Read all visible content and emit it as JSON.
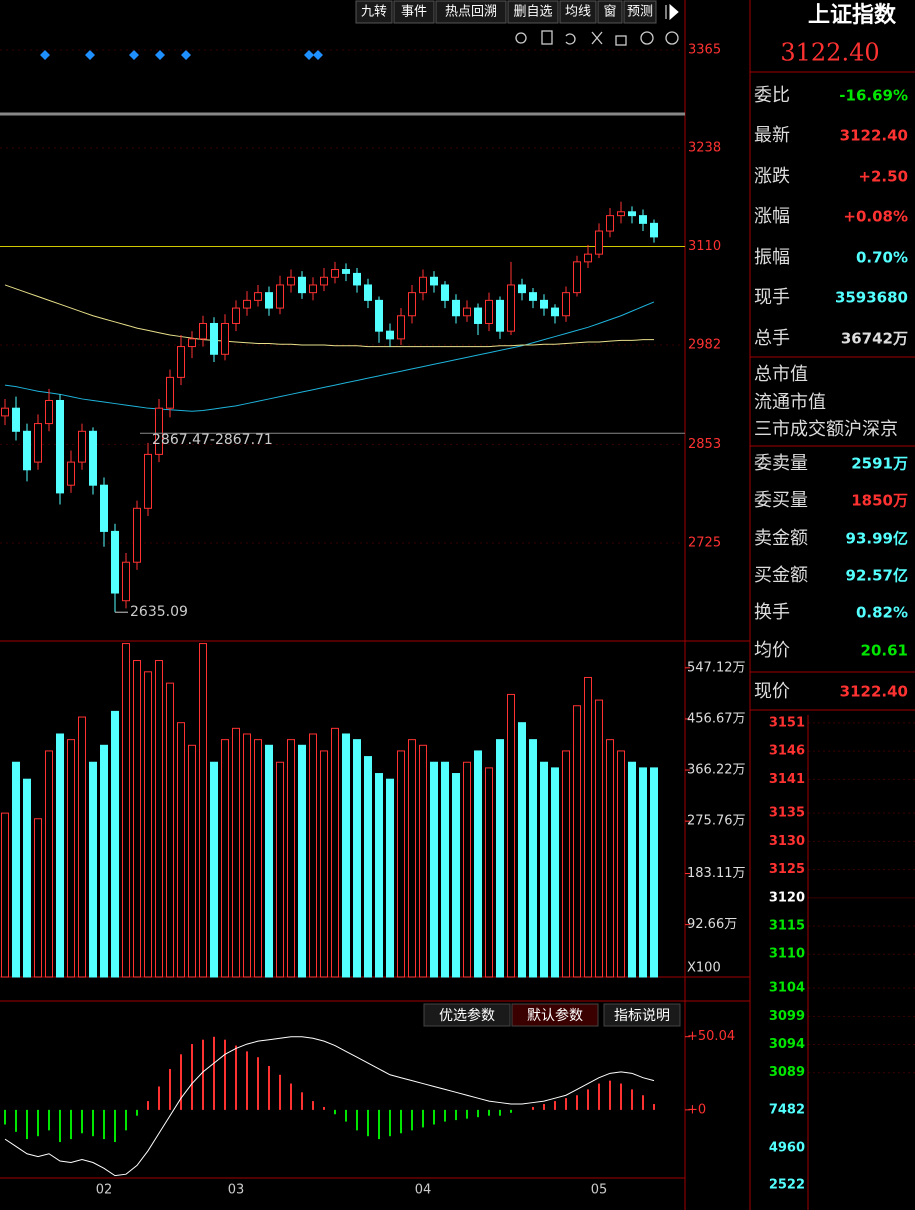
{
  "toolbar": [
    "九转",
    "事件",
    "热点回溯",
    "删自选",
    "均线",
    "窗",
    "预测"
  ],
  "quote": {
    "name": "上证指数",
    "price": "3122.40",
    "rows": [
      {
        "label": "委比",
        "value": "-16.69%",
        "color": "#00e600"
      },
      {
        "label": "最新",
        "value": "3122.40",
        "color": "#ff3232"
      },
      {
        "label": "涨跌",
        "value": "+2.50",
        "color": "#ff3232"
      },
      {
        "label": "涨幅",
        "value": "+0.08%",
        "color": "#ff3232"
      },
      {
        "label": "振幅",
        "value": "0.70%",
        "color": "#54ffff"
      },
      {
        "label": "现手",
        "value": "3593680",
        "color": "#54ffff"
      },
      {
        "label": "总手",
        "value": "36742万",
        "color": "#dddddd"
      }
    ],
    "info_rows": [
      "总市值",
      "流通市值",
      "三市成交额沪深京"
    ],
    "rows2": [
      {
        "label": "委卖量",
        "value": "2591万",
        "color": "#54ffff"
      },
      {
        "label": "委买量",
        "value": "1850万",
        "color": "#ff3232"
      },
      {
        "label": "卖金额",
        "value": "93.99亿",
        "color": "#54ffff"
      },
      {
        "label": "买金额",
        "value": "92.57亿",
        "color": "#54ffff"
      },
      {
        "label": "换手",
        "value": "0.82%",
        "color": "#54ffff"
      },
      {
        "label": "均价",
        "value": "20.61",
        "color": "#00e600"
      },
      {
        "label": "现价",
        "value": "3122.40",
        "color": "#ff3232"
      }
    ]
  },
  "buttons": [
    "优选参数",
    "默认参数",
    "指标说明"
  ],
  "chart_data": [
    {
      "type": "candlestick",
      "categories": [
        null,
        null,
        null,
        null,
        null,
        null,
        null,
        null,
        null,
        "02",
        null,
        null,
        null,
        null,
        null,
        null,
        null,
        null,
        null,
        null,
        null,
        "03",
        null,
        null,
        null,
        null,
        null,
        null,
        null,
        null,
        null,
        null,
        null,
        null,
        null,
        null,
        null,
        null,
        "04",
        null,
        null,
        null,
        null,
        null,
        null,
        null,
        null,
        null,
        null,
        null,
        null,
        null,
        null,
        null,
        "05",
        null,
        null,
        null,
        null,
        null
      ],
      "open": [
        2890,
        2900,
        2870,
        2830,
        2880,
        2910,
        2800,
        2830,
        2870,
        2800,
        2740,
        2650,
        2700,
        2770,
        2840,
        2900,
        2940,
        2980,
        2990,
        3010,
        2970,
        3010,
        3030,
        3040,
        3050,
        3030,
        3060,
        3070,
        3050,
        3060,
        3070,
        3080,
        3075,
        3060,
        3040,
        3000,
        2990,
        3020,
        3050,
        3070,
        3060,
        3040,
        3020,
        3030,
        3010,
        3040,
        3000,
        3060,
        3050,
        3040,
        3030,
        3020,
        3050,
        3090,
        3100,
        3130,
        3150,
        3155,
        3150,
        3140
      ],
      "high": [
        2912,
        2915,
        2880,
        2892,
        2925,
        2918,
        2845,
        2880,
        2875,
        2810,
        2750,
        2712,
        2780,
        2855,
        2912,
        2950,
        2995,
        3000,
        3020,
        3018,
        3022,
        3040,
        3052,
        3060,
        3058,
        3072,
        3080,
        3078,
        3070,
        3082,
        3090,
        3088,
        3082,
        3068,
        3045,
        3010,
        3030,
        3060,
        3080,
        3078,
        3065,
        3048,
        3040,
        3036,
        3050,
        3045,
        3090,
        3068,
        3056,
        3048,
        3035,
        3058,
        3098,
        3112,
        3140,
        3160,
        3168,
        3162,
        3158,
        3145
      ],
      "low": [
        2878,
        2858,
        2805,
        2820,
        2870,
        2775,
        2790,
        2820,
        2788,
        2720,
        2635.09,
        2640,
        2690,
        2760,
        2830,
        2888,
        2930,
        2965,
        2980,
        2960,
        2962,
        3000,
        3020,
        3032,
        3020,
        3022,
        3050,
        3042,
        3040,
        3052,
        3062,
        3065,
        3050,
        3030,
        2985,
        2980,
        2982,
        3010,
        3040,
        3050,
        3030,
        3010,
        3012,
        2995,
        3000,
        2990,
        2995,
        3040,
        3030,
        3020,
        3010,
        3012,
        3045,
        3082,
        3095,
        3122,
        3140,
        3140,
        3130,
        3115
      ],
      "close": [
        2900,
        2870,
        2820,
        2880,
        2910,
        2790,
        2830,
        2870,
        2800,
        2740,
        2660,
        2700,
        2770,
        2840,
        2900,
        2940,
        2980,
        2990,
        3010,
        2970,
        3010,
        3030,
        3040,
        3050,
        3030,
        3060,
        3070,
        3050,
        3060,
        3070,
        3080,
        3075,
        3060,
        3040,
        3000,
        2990,
        3020,
        3050,
        3070,
        3060,
        3040,
        3020,
        3030,
        3010,
        3040,
        3000,
        3060,
        3050,
        3040,
        3030,
        3020,
        3050,
        3090,
        3100,
        3130,
        3150,
        3155,
        3150,
        3140,
        3122.4
      ],
      "up_color": "#ff3232",
      "down_color": "#54ffff",
      "lines": [
        {
          "color": "#1eb4dc",
          "values": [
            2930,
            2928,
            2925,
            2922,
            2920,
            2918,
            2915,
            2912,
            2910,
            2908,
            2906,
            2904,
            2902,
            2900,
            2899,
            2898,
            2897,
            2896,
            2897,
            2899,
            2901,
            2903,
            2906,
            2909,
            2912,
            2915,
            2918,
            2921,
            2924,
            2927,
            2930,
            2933,
            2936,
            2939,
            2942,
            2945,
            2948,
            2951,
            2954,
            2957,
            2960,
            2963,
            2966,
            2969,
            2972,
            2975,
            2978,
            2981,
            2985,
            2989,
            2993,
            2997,
            3001,
            3005,
            3010,
            3015,
            3020,
            3026,
            3032,
            3038
          ]
        },
        {
          "color": "#e8e08a",
          "values": [
            3060,
            3055,
            3050,
            3045,
            3040,
            3035,
            3030,
            3025,
            3020,
            3016,
            3012,
            3008,
            3004,
            3001,
            2998,
            2995,
            2993,
            2991,
            2989,
            2988,
            2987,
            2986,
            2985,
            2984,
            2984,
            2983,
            2983,
            2982,
            2982,
            2982,
            2981,
            2981,
            2981,
            2980,
            2980,
            2980,
            2980,
            2980,
            2980,
            2980,
            2980,
            2980,
            2980,
            2980,
            2980,
            2981,
            2981,
            2982,
            2982,
            2983,
            2983,
            2984,
            2985,
            2986,
            2986,
            2987,
            2988,
            2988,
            2989,
            2989
          ]
        }
      ],
      "ylim": [
        2599,
        3430
      ],
      "yticks": [
        2725,
        2853,
        2982,
        3110,
        3238,
        3365
      ],
      "ref_line": 3110,
      "ref_color": "#d2c800",
      "annotations": [
        {
          "label": "2635.09",
          "value": 2635.09
        },
        {
          "label": "2867.47-2867.71",
          "value": 2867.47
        }
      ]
    },
    {
      "type": "volume",
      "values": [
        290,
        380,
        350,
        280,
        400,
        430,
        420,
        460,
        380,
        410,
        470,
        590,
        560,
        540,
        560,
        520,
        450,
        410,
        590,
        380,
        420,
        440,
        430,
        420,
        410,
        380,
        420,
        410,
        430,
        400,
        440,
        430,
        420,
        390,
        360,
        350,
        400,
        420,
        410,
        380,
        380,
        360,
        380,
        400,
        370,
        420,
        500,
        450,
        420,
        380,
        370,
        400,
        480,
        530,
        490,
        420,
        400,
        380,
        370,
        370
      ],
      "ylim": [
        0,
        591
      ],
      "yticks": [
        {
          "value": 92.66,
          "label": "92.66万"
        },
        {
          "value": 183.11,
          "label": "183.11万"
        },
        {
          "value": 275.76,
          "label": "275.76万"
        },
        {
          "value": 366.22,
          "label": "366.22万"
        },
        {
          "value": 456.67,
          "label": "456.67万"
        },
        {
          "value": 547.12,
          "label": "547.12万"
        }
      ],
      "unit": "X100"
    },
    {
      "type": "macd",
      "values": [
        -10,
        -15,
        -20,
        -18,
        -14,
        -22,
        -20,
        -16,
        -18,
        -20,
        -22,
        -14,
        -4,
        6,
        16,
        28,
        38,
        45,
        48,
        50,
        48,
        44,
        40,
        36,
        30,
        24,
        18,
        12,
        6,
        2,
        -3,
        -8,
        -14,
        -18,
        -20,
        -18,
        -16,
        -14,
        -12,
        -10,
        -8,
        -7,
        -6,
        -5,
        -4,
        -4,
        -2,
        0,
        2,
        4,
        6,
        8,
        10,
        14,
        18,
        20,
        18,
        14,
        10,
        4
      ],
      "dif": [
        -20,
        -25,
        -30,
        -32,
        -30,
        -35,
        -36,
        -34,
        -36,
        -40,
        -45,
        -44,
        -38,
        -28,
        -16,
        -4,
        8,
        18,
        26,
        32,
        38,
        42,
        45,
        47,
        48,
        49,
        50,
        50,
        49,
        47,
        44,
        40,
        36,
        32,
        28,
        24,
        22,
        20,
        18,
        16,
        14,
        12,
        10,
        8,
        6,
        5,
        4,
        4,
        5,
        6,
        8,
        10,
        14,
        18,
        22,
        25,
        26,
        25,
        22,
        20
      ],
      "pos_color": "#ff3232",
      "neg_color": "#00e600",
      "dif_color": "#ffffff",
      "ylim": [
        -46.6,
        56
      ],
      "yticks": [
        {
          "value": 0,
          "label": "+0"
        },
        {
          "value": 50.04,
          "label": "+50.04"
        }
      ]
    },
    {
      "type": "intraday",
      "ylim": [
        3088.6,
        3152.4
      ],
      "yticks": [
        3089,
        3094,
        3099,
        3104,
        3110,
        3115,
        3120,
        3125,
        3130,
        3135,
        3141,
        3146,
        3151
      ],
      "base": 3120,
      "y2lim": [
        1199,
        9797
      ],
      "y2ticks": [
        2522,
        4960,
        7482
      ],
      "up_color": "#ff3232",
      "down_color": "#00e600",
      "flat_color": "#ffffff"
    }
  ]
}
